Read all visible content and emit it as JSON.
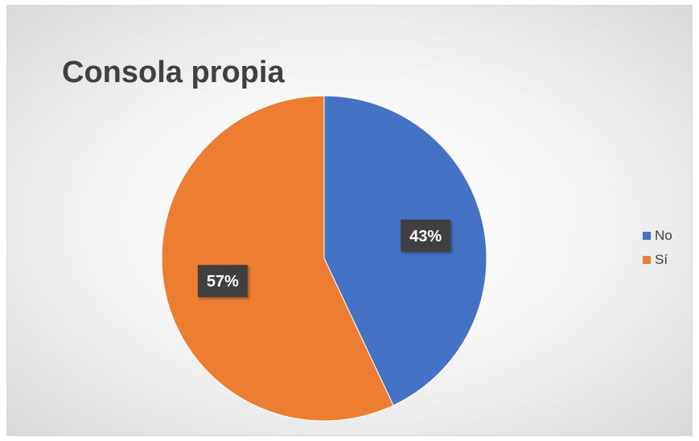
{
  "chart_data": {
    "type": "pie",
    "title": "Consola propia",
    "series": [
      {
        "name": "No",
        "value": 43,
        "label": "43%",
        "color": "#4472c4"
      },
      {
        "name": "Sí",
        "value": 57,
        "label": "57%",
        "color": "#ed7d31"
      }
    ],
    "start_angle": "12 o'clock",
    "direction": "clockwise",
    "legend_position": "right",
    "data_label_style": {
      "background": "#404040",
      "color": "#ffffff"
    }
  }
}
